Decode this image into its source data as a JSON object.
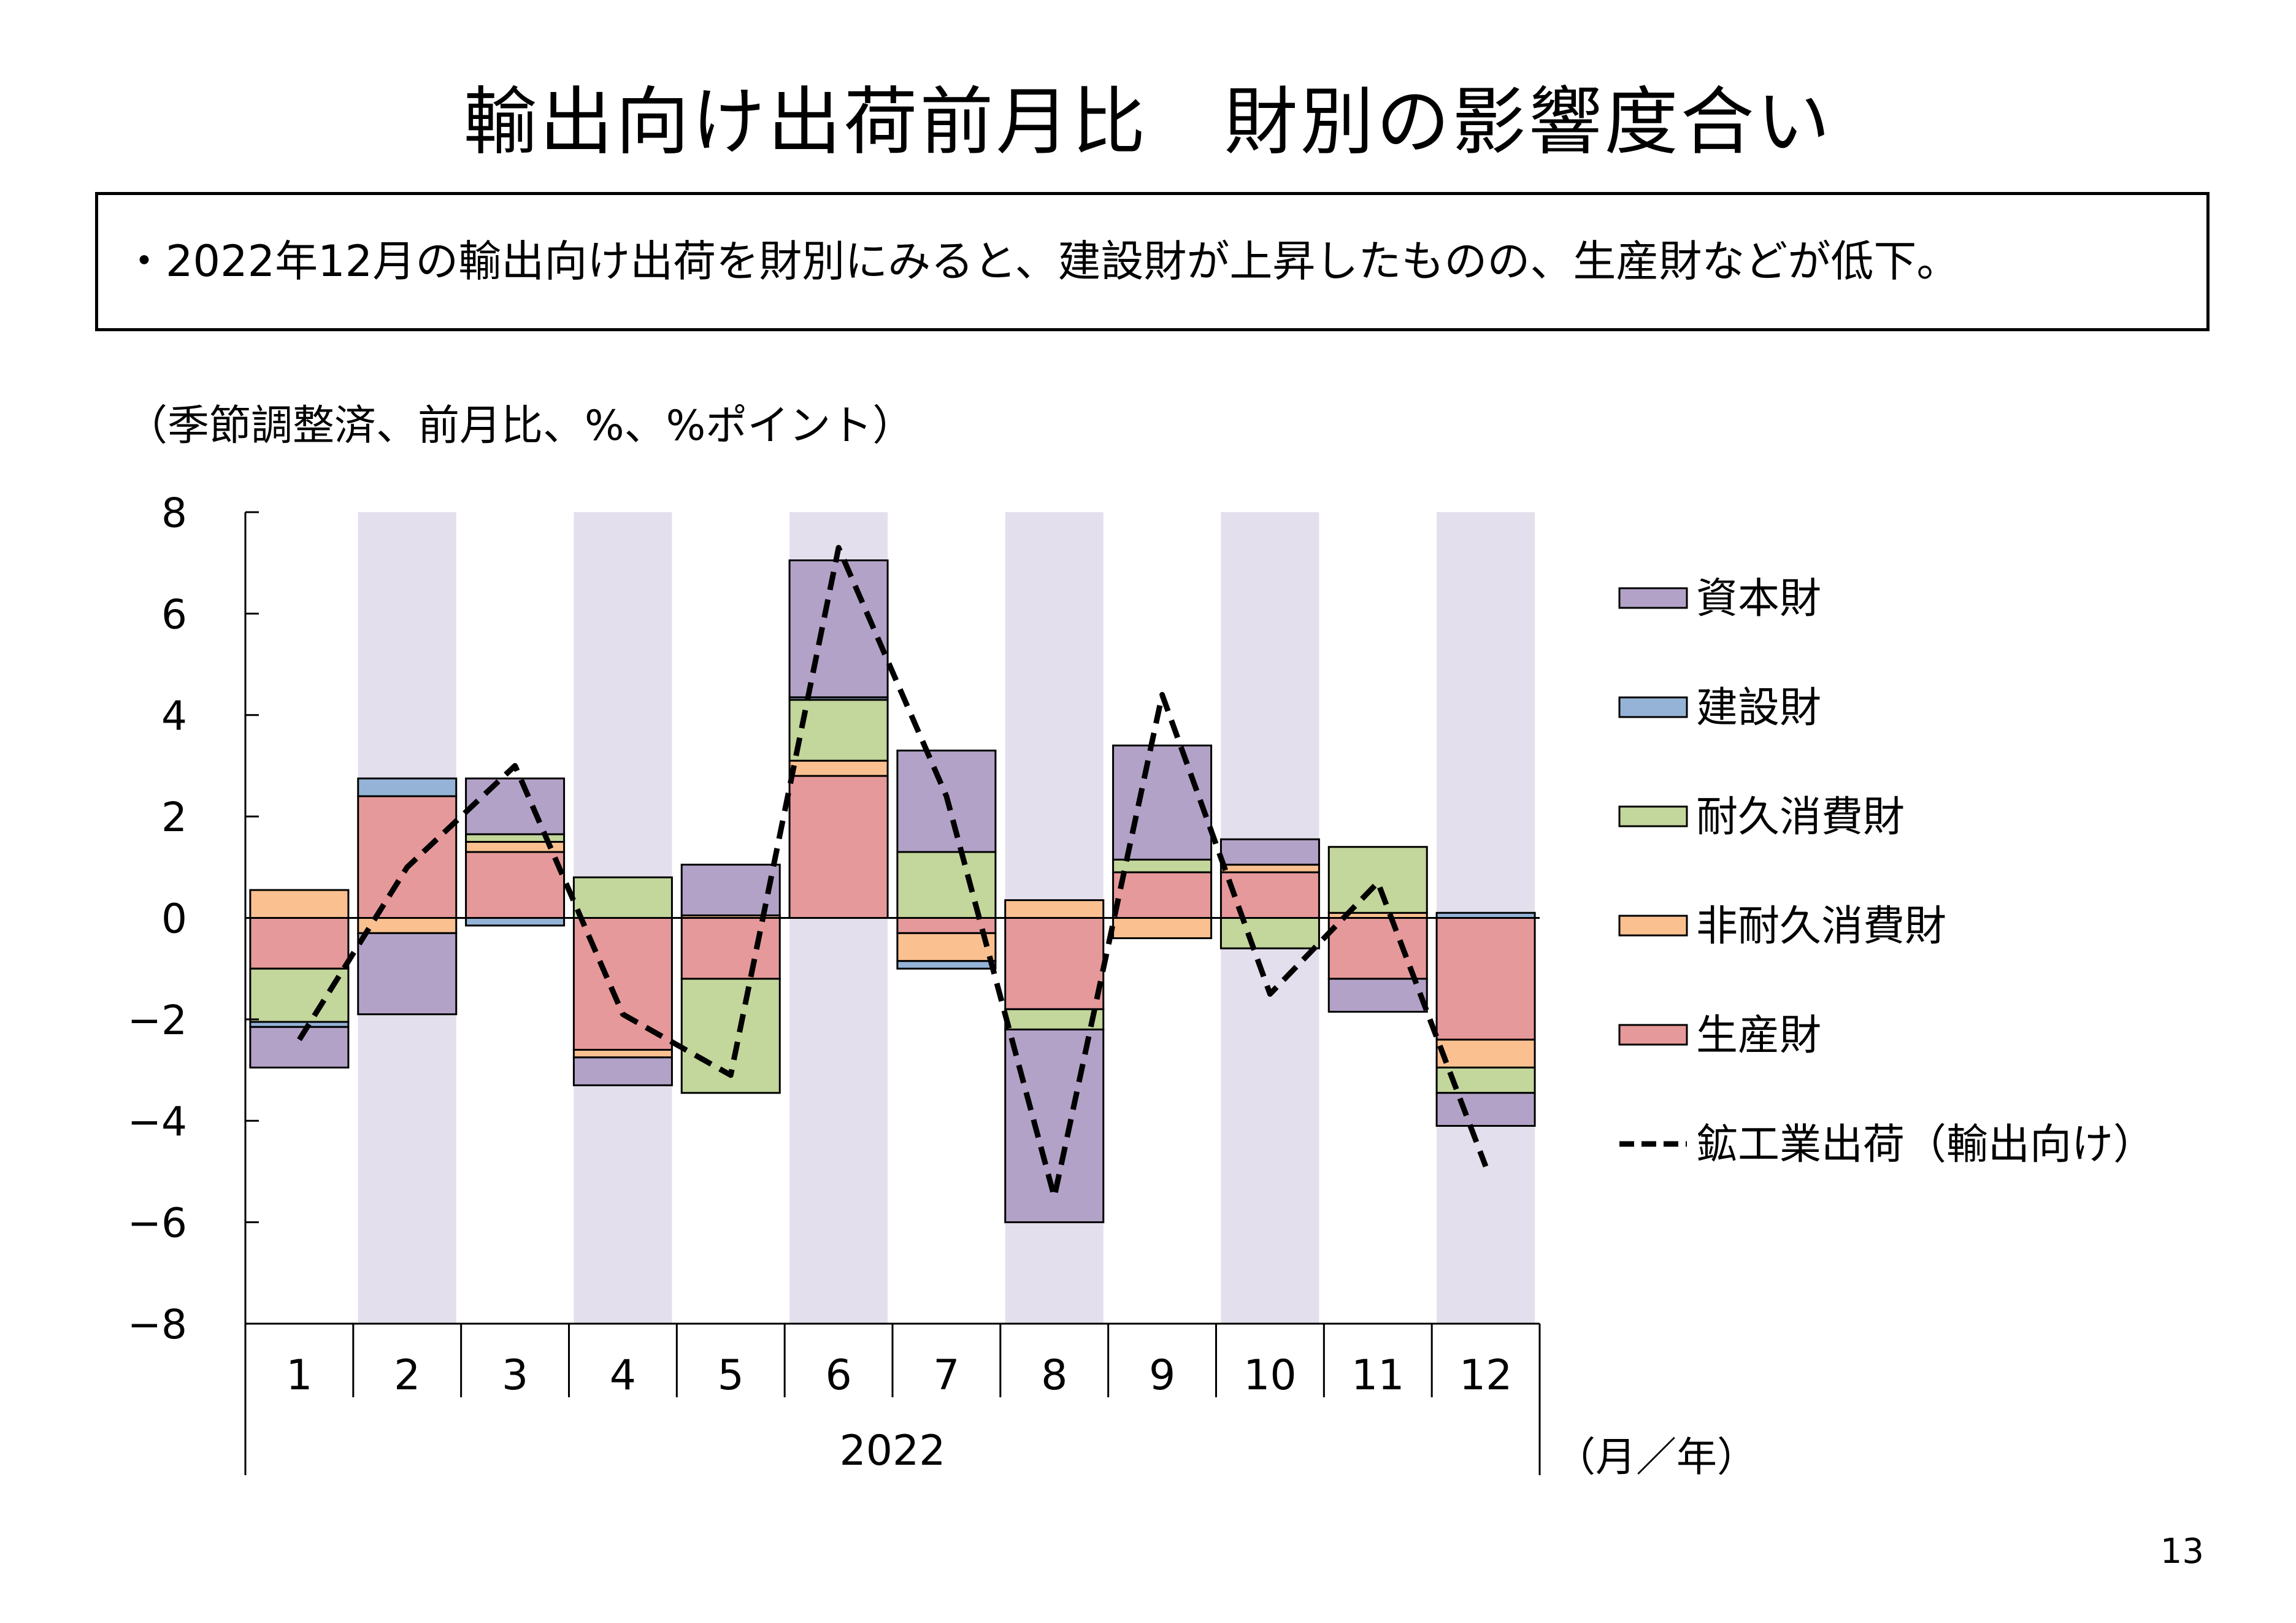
{
  "title": "輸出向け出荷前月比　財別の影響度合い",
  "summary": "・2022年12月の輸出向け出荷を財別にみると、建設財が上昇したものの、生産財などが低下。",
  "unit_label": "（季節調整済、前月比、%、%ポイント）",
  "page_number": "13",
  "colors": {
    "shade": "#E4DFEC",
    "capital": "#B3A2C7",
    "construction": "#95B3D7",
    "durable": "#C3D69B",
    "nondurable": "#FAC090",
    "producer": "#E6999A"
  },
  "chart_data": {
    "type": "bar",
    "stacked": true,
    "categories": [
      "1",
      "2",
      "3",
      "4",
      "5",
      "6",
      "7",
      "8",
      "9",
      "10",
      "11",
      "12"
    ],
    "year_label": "2022",
    "x_unit": "（月／年）",
    "ylim": [
      -8,
      8
    ],
    "yticks": [
      "8",
      "6",
      "4",
      "2",
      "0",
      "−2",
      "−4",
      "−6",
      "−8"
    ],
    "ytick_values": [
      8,
      6,
      4,
      2,
      0,
      -2,
      -4,
      -6,
      -8
    ],
    "series": [
      {
        "name": "生産財",
        "key": "producer",
        "values": [
          -1.0,
          2.4,
          1.3,
          -2.6,
          -1.2,
          2.8,
          -0.3,
          -1.8,
          0.9,
          0.9,
          -1.2,
          -2.4
        ]
      },
      {
        "name": "非耐久消費財",
        "key": "nondurable",
        "values": [
          0.55,
          -0.3,
          0.2,
          -0.15,
          0.05,
          0.3,
          -0.55,
          0.35,
          -0.4,
          0.15,
          0.1,
          -0.55
        ]
      },
      {
        "name": "耐久消費財",
        "key": "durable",
        "values": [
          -1.05,
          0.0,
          0.15,
          0.8,
          -2.25,
          1.2,
          1.3,
          -0.4,
          0.25,
          -0.6,
          1.3,
          -0.5
        ]
      },
      {
        "name": "建設財",
        "key": "construction",
        "values": [
          -0.1,
          0.35,
          -0.15,
          0.0,
          0.0,
          0.05,
          -0.15,
          0.0,
          0.0,
          0.0,
          0.0,
          0.1
        ]
      },
      {
        "name": "資本財",
        "key": "capital",
        "values": [
          -0.8,
          -1.6,
          1.1,
          -0.55,
          1.0,
          2.7,
          2.0,
          -3.8,
          2.25,
          0.5,
          -0.65,
          -0.65
        ]
      }
    ],
    "line": {
      "name": "鉱工業出荷（輸出向け）",
      "values": [
        -2.4,
        1.0,
        3.0,
        -1.9,
        -3.1,
        7.3,
        2.4,
        -5.5,
        4.4,
        -1.5,
        0.7,
        -4.9
      ]
    },
    "legend_order": [
      "capital",
      "construction",
      "durable",
      "nondurable",
      "producer",
      "line"
    ],
    "legend_labels": {
      "capital": "資本財",
      "construction": "建設財",
      "durable": "耐久消費財",
      "nondurable": "非耐久消費財",
      "producer": "生産財",
      "line": "鉱工業出荷（輸出向け）"
    },
    "shaded_months": [
      "2",
      "4",
      "6",
      "8",
      "10",
      "12"
    ],
    "legend_position": "right"
  }
}
